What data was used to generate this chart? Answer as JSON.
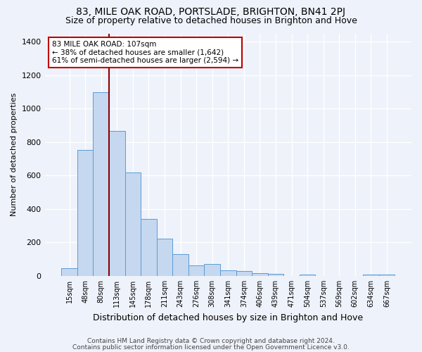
{
  "title1": "83, MILE OAK ROAD, PORTSLADE, BRIGHTON, BN41 2PJ",
  "title2": "Size of property relative to detached houses in Brighton and Hove",
  "xlabel": "Distribution of detached houses by size in Brighton and Hove",
  "ylabel": "Number of detached properties",
  "footnote1": "Contains HM Land Registry data © Crown copyright and database right 2024.",
  "footnote2": "Contains public sector information licensed under the Open Government Licence v3.0.",
  "categories": [
    "15sqm",
    "48sqm",
    "80sqm",
    "113sqm",
    "145sqm",
    "178sqm",
    "211sqm",
    "243sqm",
    "276sqm",
    "308sqm",
    "341sqm",
    "374sqm",
    "406sqm",
    "439sqm",
    "471sqm",
    "504sqm",
    "537sqm",
    "569sqm",
    "602sqm",
    "634sqm",
    "667sqm"
  ],
  "values": [
    48,
    752,
    1100,
    868,
    617,
    340,
    222,
    130,
    62,
    70,
    32,
    28,
    18,
    12,
    0,
    10,
    0,
    0,
    0,
    10,
    10
  ],
  "bar_color": "#c5d8f0",
  "bar_edge_color": "#5b9bd5",
  "vline_color": "#8b0000",
  "annotation_text": "83 MILE OAK ROAD: 107sqm\n← 38% of detached houses are smaller (1,642)\n61% of semi-detached houses are larger (2,594) →",
  "annotation_box_color": "white",
  "annotation_box_edge": "#c00000",
  "ylim": [
    0,
    1450
  ],
  "yticks": [
    0,
    200,
    400,
    600,
    800,
    1000,
    1200,
    1400
  ],
  "bg_color": "#eef2fa",
  "grid_color": "white",
  "title1_fontsize": 10,
  "title2_fontsize": 9,
  "xlabel_fontsize": 9,
  "ylabel_fontsize": 8,
  "footnote_color": "#444444"
}
